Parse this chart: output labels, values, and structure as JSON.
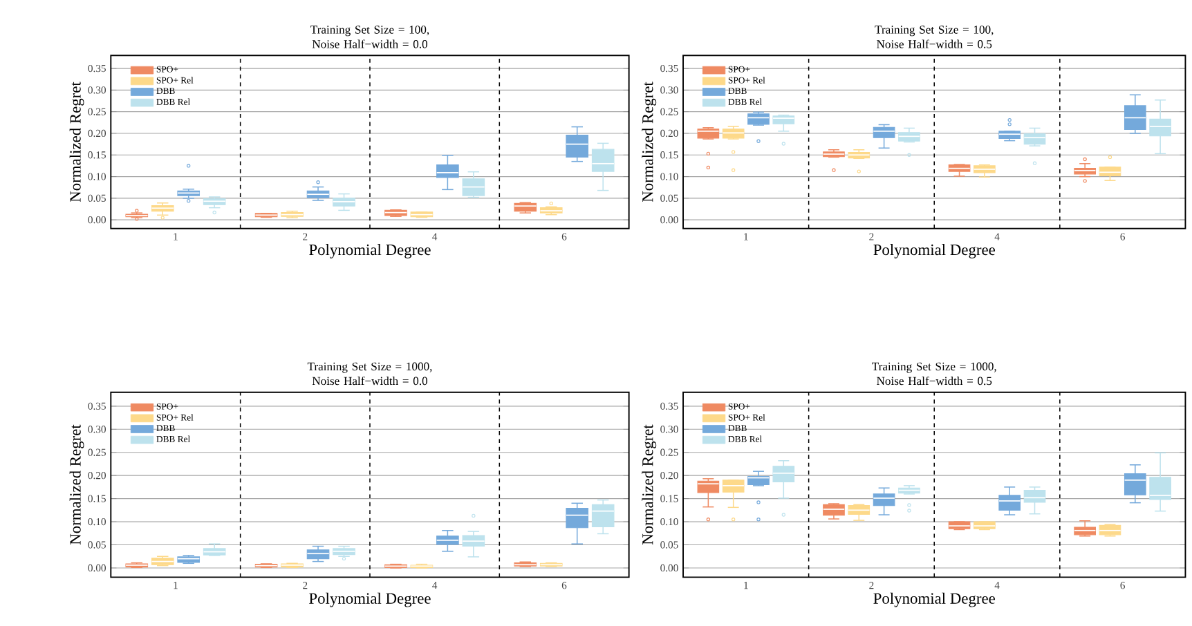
{
  "chart_data": [
    {
      "type": "box",
      "title": "Training Set Size = 100, Noise Half−width = 0.0",
      "xlabel": "Polynomial Degree",
      "ylabel": "Normalized Regret",
      "categories": [
        "1",
        "2",
        "4",
        "6"
      ],
      "ylim": [
        -0.02,
        0.38
      ],
      "yticks": [
        {
          "value": 0,
          "label": "0.00"
        },
        {
          "value": 0.05,
          "label": "0.05"
        },
        {
          "value": 0.1,
          "label": "0.10"
        },
        {
          "value": 0.15,
          "label": "0.15"
        },
        {
          "value": 0.2,
          "label": "0.20"
        },
        {
          "value": 0.25,
          "label": "0.25"
        },
        {
          "value": 0.3,
          "label": "0.30"
        },
        {
          "value": 0.35,
          "label": "0.35"
        }
      ],
      "grid": "y",
      "legend": "top left",
      "series": [
        {
          "name": "SPO+",
          "color": "#ef8a62",
          "boxes": [
            {
              "low": 0.005,
              "q1": 0.007,
              "median": 0.01,
              "q3": 0.013,
              "high": 0.016,
              "outliers": [
                0.021,
                0.002
              ]
            },
            {
              "low": 0.006,
              "q1": 0.007,
              "median": 0.011,
              "q3": 0.015,
              "high": 0.015
            },
            {
              "low": 0.008,
              "q1": 0.01,
              "median": 0.017,
              "q3": 0.022,
              "high": 0.023
            },
            {
              "low": 0.016,
              "q1": 0.02,
              "median": 0.032,
              "q3": 0.038,
              "high": 0.04
            }
          ]
        },
        {
          "name": "SPO+ Rel",
          "color": "#fdd98a",
          "boxes": [
            {
              "low": 0.011,
              "q1": 0.02,
              "median": 0.027,
              "q3": 0.033,
              "high": 0.039,
              "outliers": [
                0.005
              ]
            },
            {
              "low": 0.005,
              "q1": 0.008,
              "median": 0.012,
              "q3": 0.017,
              "high": 0.02
            },
            {
              "low": 0.006,
              "q1": 0.007,
              "median": 0.012,
              "q3": 0.018,
              "high": 0.018
            },
            {
              "low": 0.012,
              "q1": 0.016,
              "median": 0.021,
              "q3": 0.028,
              "high": 0.03,
              "outliers": [
                0.038
              ]
            }
          ]
        },
        {
          "name": "DBB",
          "color": "#74a9db",
          "boxes": [
            {
              "low": 0.05,
              "q1": 0.056,
              "median": 0.062,
              "q3": 0.067,
              "high": 0.071,
              "outliers": [
                0.125,
                0.044
              ]
            },
            {
              "low": 0.045,
              "q1": 0.051,
              "median": 0.059,
              "q3": 0.067,
              "high": 0.076,
              "outliers": [
                0.087
              ]
            },
            {
              "low": 0.07,
              "q1": 0.098,
              "median": 0.109,
              "q3": 0.127,
              "high": 0.149
            },
            {
              "low": 0.135,
              "q1": 0.145,
              "median": 0.175,
              "q3": 0.196,
              "high": 0.215
            }
          ]
        },
        {
          "name": "DBB Rel",
          "color": "#bde2ed",
          "boxes": [
            {
              "low": 0.028,
              "q1": 0.035,
              "median": 0.043,
              "q3": 0.049,
              "high": 0.053,
              "outliers": [
                0.017
              ]
            },
            {
              "low": 0.022,
              "q1": 0.032,
              "median": 0.042,
              "q3": 0.05,
              "high": 0.06
            },
            {
              "low": 0.052,
              "q1": 0.056,
              "median": 0.076,
              "q3": 0.095,
              "high": 0.111
            },
            {
              "low": 0.068,
              "q1": 0.112,
              "median": 0.13,
              "q3": 0.163,
              "high": 0.177
            }
          ]
        }
      ]
    },
    {
      "type": "box",
      "title": "Training Set Size = 100, Noise Half−width = 0.5",
      "xlabel": "Polynomial Degree",
      "ylabel": "Normalized Regret",
      "categories": [
        "1",
        "2",
        "4",
        "6"
      ],
      "ylim": [
        -0.02,
        0.38
      ],
      "yticks": [
        {
          "value": 0,
          "label": "0.00"
        },
        {
          "value": 0.05,
          "label": "0.05"
        },
        {
          "value": 0.1,
          "label": "0.10"
        },
        {
          "value": 0.15,
          "label": "0.15"
        },
        {
          "value": 0.2,
          "label": "0.20"
        },
        {
          "value": 0.25,
          "label": "0.25"
        },
        {
          "value": 0.3,
          "label": "0.30"
        },
        {
          "value": 0.35,
          "label": "0.35"
        }
      ],
      "grid": "y",
      "legend": "top left",
      "series": [
        {
          "name": "SPO+",
          "color": "#ef8a62",
          "boxes": [
            {
              "low": 0.187,
              "q1": 0.189,
              "median": 0.205,
              "q3": 0.21,
              "high": 0.213,
              "outliers": [
                0.153,
                0.121
              ]
            },
            {
              "low": 0.145,
              "q1": 0.146,
              "median": 0.152,
              "q3": 0.157,
              "high": 0.162,
              "outliers": [
                0.115
              ]
            },
            {
              "low": 0.101,
              "q1": 0.112,
              "median": 0.119,
              "q3": 0.127,
              "high": 0.128
            },
            {
              "low": 0.1,
              "q1": 0.106,
              "median": 0.114,
              "q3": 0.119,
              "high": 0.13,
              "outliers": [
                0.14,
                0.09
              ]
            }
          ]
        },
        {
          "name": "SPO+ Rel",
          "color": "#fdd98a",
          "boxes": [
            {
              "low": 0.187,
              "q1": 0.189,
              "median": 0.201,
              "q3": 0.21,
              "high": 0.216,
              "outliers": [
                0.157,
                0.115
              ]
            },
            {
              "low": 0.142,
              "q1": 0.143,
              "median": 0.15,
              "q3": 0.156,
              "high": 0.162,
              "outliers": [
                0.112
              ]
            },
            {
              "low": 0.099,
              "q1": 0.109,
              "median": 0.117,
              "q3": 0.125,
              "high": 0.127
            },
            {
              "low": 0.091,
              "q1": 0.102,
              "median": 0.11,
              "q3": 0.122,
              "high": 0.122,
              "outliers": [
                0.145
              ]
            }
          ]
        },
        {
          "name": "DBB",
          "color": "#74a9db",
          "boxes": [
            {
              "low": 0.219,
              "q1": 0.221,
              "median": 0.236,
              "q3": 0.245,
              "high": 0.249,
              "outliers": [
                0.182
              ]
            },
            {
              "low": 0.166,
              "q1": 0.19,
              "median": 0.205,
              "q3": 0.214,
              "high": 0.22
            },
            {
              "low": 0.183,
              "q1": 0.188,
              "median": 0.198,
              "q3": 0.205,
              "high": 0.205,
              "outliers": [
                0.231,
                0.221
              ]
            },
            {
              "low": 0.2,
              "q1": 0.209,
              "median": 0.236,
              "q3": 0.264,
              "high": 0.289
            }
          ]
        },
        {
          "name": "DBB Rel",
          "color": "#bde2ed",
          "boxes": [
            {
              "low": 0.205,
              "q1": 0.222,
              "median": 0.235,
              "q3": 0.24,
              "high": 0.242,
              "outliers": [
                0.176
              ]
            },
            {
              "low": 0.18,
              "q1": 0.182,
              "median": 0.193,
              "q3": 0.202,
              "high": 0.212,
              "outliers": [
                0.15
              ]
            },
            {
              "low": 0.171,
              "q1": 0.175,
              "median": 0.19,
              "q3": 0.199,
              "high": 0.212,
              "outliers": [
                0.131
              ]
            },
            {
              "low": 0.153,
              "q1": 0.194,
              "median": 0.216,
              "q3": 0.233,
              "high": 0.277
            }
          ]
        }
      ]
    },
    {
      "type": "box",
      "title": "Training Set Size = 1000, Noise Half−width = 0.0",
      "xlabel": "Polynomial Degree",
      "ylabel": "Normalized Regret",
      "categories": [
        "1",
        "2",
        "4",
        "6"
      ],
      "ylim": [
        -0.02,
        0.38
      ],
      "yticks": [
        {
          "value": 0,
          "label": "0.00"
        },
        {
          "value": 0.05,
          "label": "0.05"
        },
        {
          "value": 0.1,
          "label": "0.10"
        },
        {
          "value": 0.15,
          "label": "0.15"
        },
        {
          "value": 0.2,
          "label": "0.20"
        },
        {
          "value": 0.25,
          "label": "0.25"
        },
        {
          "value": 0.3,
          "label": "0.30"
        },
        {
          "value": 0.35,
          "label": "0.35"
        }
      ],
      "grid": "y",
      "legend": "top left",
      "series": [
        {
          "name": "SPO+",
          "color": "#ef8a62",
          "boxes": [
            {
              "low": 0.001,
              "q1": 0.002,
              "median": 0.006,
              "q3": 0.009,
              "high": 0.011
            },
            {
              "low": 0.001,
              "q1": 0.002,
              "median": 0.005,
              "q3": 0.008,
              "high": 0.009
            },
            {
              "low": 0.0,
              "q1": 0.001,
              "median": 0.004,
              "q3": 0.007,
              "high": 0.008
            },
            {
              "low": 0.003,
              "q1": 0.004,
              "median": 0.007,
              "q3": 0.011,
              "high": 0.013
            }
          ]
        },
        {
          "name": "SPO+ Rel",
          "color": "#fdd98a",
          "boxes": [
            {
              "low": 0.005,
              "q1": 0.007,
              "median": 0.014,
              "q3": 0.021,
              "high": 0.025
            },
            {
              "low": 0.001,
              "q1": 0.002,
              "median": 0.006,
              "q3": 0.009,
              "high": 0.01
            },
            {
              "low": 0.0,
              "q1": 0.001,
              "median": 0.004,
              "q3": 0.006,
              "high": 0.008
            },
            {
              "low": 0.003,
              "q1": 0.004,
              "median": 0.007,
              "q3": 0.01,
              "high": 0.011
            }
          ]
        },
        {
          "name": "DBB",
          "color": "#74a9db",
          "boxes": [
            {
              "low": 0.01,
              "q1": 0.012,
              "median": 0.02,
              "q3": 0.024,
              "high": 0.027
            },
            {
              "low": 0.014,
              "q1": 0.02,
              "median": 0.031,
              "q3": 0.039,
              "high": 0.047
            },
            {
              "low": 0.036,
              "q1": 0.051,
              "median": 0.06,
              "q3": 0.069,
              "high": 0.081
            },
            {
              "low": 0.052,
              "q1": 0.087,
              "median": 0.114,
              "q3": 0.129,
              "high": 0.14
            }
          ]
        },
        {
          "name": "DBB Rel",
          "color": "#bde2ed",
          "boxes": [
            {
              "low": 0.027,
              "q1": 0.028,
              "median": 0.035,
              "q3": 0.042,
              "high": 0.052
            },
            {
              "low": 0.025,
              "q1": 0.029,
              "median": 0.036,
              "q3": 0.042,
              "high": 0.047,
              "outliers": [
                0.02
              ]
            },
            {
              "low": 0.024,
              "q1": 0.047,
              "median": 0.058,
              "q3": 0.07,
              "high": 0.079,
              "outliers": [
                0.113
              ]
            },
            {
              "low": 0.074,
              "q1": 0.089,
              "median": 0.123,
              "q3": 0.137,
              "high": 0.147
            }
          ]
        }
      ]
    },
    {
      "type": "box",
      "title": "Training Set Size = 1000, Noise Half−width = 0.5",
      "xlabel": "Polynomial Degree",
      "ylabel": "Normalized Regret",
      "categories": [
        "1",
        "2",
        "4",
        "6"
      ],
      "ylim": [
        -0.02,
        0.38
      ],
      "yticks": [
        {
          "value": 0,
          "label": "0.00"
        },
        {
          "value": 0.05,
          "label": "0.05"
        },
        {
          "value": 0.1,
          "label": "0.10"
        },
        {
          "value": 0.15,
          "label": "0.15"
        },
        {
          "value": 0.2,
          "label": "0.20"
        },
        {
          "value": 0.25,
          "label": "0.25"
        },
        {
          "value": 0.3,
          "label": "0.30"
        },
        {
          "value": 0.35,
          "label": "0.35"
        }
      ],
      "grid": "y",
      "legend": "top left",
      "series": [
        {
          "name": "SPO+",
          "color": "#ef8a62",
          "boxes": [
            {
              "low": 0.132,
              "q1": 0.163,
              "median": 0.182,
              "q3": 0.188,
              "high": 0.193,
              "outliers": [
                0.105
              ]
            },
            {
              "low": 0.106,
              "q1": 0.114,
              "median": 0.127,
              "q3": 0.137,
              "high": 0.139
            },
            {
              "low": 0.083,
              "q1": 0.085,
              "median": 0.091,
              "q3": 0.1,
              "high": 0.1
            },
            {
              "low": 0.069,
              "q1": 0.072,
              "median": 0.081,
              "q3": 0.088,
              "high": 0.102
            }
          ]
        },
        {
          "name": "SPO+ Rel",
          "color": "#fdd98a",
          "boxes": [
            {
              "low": 0.131,
              "q1": 0.164,
              "median": 0.178,
              "q3": 0.19,
              "high": 0.19,
              "outliers": [
                0.105
              ]
            },
            {
              "low": 0.103,
              "q1": 0.116,
              "median": 0.125,
              "q3": 0.135,
              "high": 0.137
            },
            {
              "low": 0.083,
              "q1": 0.085,
              "median": 0.091,
              "q3": 0.1,
              "high": 0.1
            },
            {
              "low": 0.069,
              "q1": 0.072,
              "median": 0.081,
              "q3": 0.092,
              "high": 0.094
            }
          ]
        },
        {
          "name": "DBB",
          "color": "#74a9db",
          "boxes": [
            {
              "low": 0.178,
              "q1": 0.18,
              "median": 0.195,
              "q3": 0.198,
              "high": 0.209,
              "outliers": [
                0.142,
                0.105
              ]
            },
            {
              "low": 0.115,
              "q1": 0.135,
              "median": 0.151,
              "q3": 0.16,
              "high": 0.173
            },
            {
              "low": 0.115,
              "q1": 0.125,
              "median": 0.145,
              "q3": 0.157,
              "high": 0.175
            },
            {
              "low": 0.141,
              "q1": 0.158,
              "median": 0.19,
              "q3": 0.204,
              "high": 0.223
            }
          ]
        },
        {
          "name": "DBB Rel",
          "color": "#bde2ed",
          "boxes": [
            {
              "low": 0.151,
              "q1": 0.186,
              "median": 0.205,
              "q3": 0.22,
              "high": 0.232,
              "outliers": [
                0.115
              ]
            },
            {
              "low": 0.16,
              "q1": 0.162,
              "median": 0.168,
              "q3": 0.173,
              "high": 0.178,
              "outliers": [
                0.136,
                0.124
              ]
            },
            {
              "low": 0.117,
              "q1": 0.142,
              "median": 0.152,
              "q3": 0.168,
              "high": 0.175
            },
            {
              "low": 0.123,
              "q1": 0.148,
              "median": 0.157,
              "q3": 0.196,
              "high": 0.249
            }
          ]
        }
      ]
    }
  ]
}
